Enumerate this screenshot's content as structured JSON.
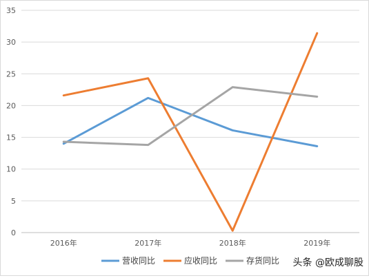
{
  "chart_data": {
    "type": "line",
    "categories": [
      "2016年",
      "2017年",
      "2018年",
      "2019年"
    ],
    "series": [
      {
        "name": "营收同比",
        "values": [
          14.0,
          21.2,
          16.1,
          13.6
        ],
        "color": "#5b9bd5"
      },
      {
        "name": "应收同比",
        "values": [
          21.6,
          24.3,
          0.3,
          31.4
        ],
        "color": "#ed7d31"
      },
      {
        "name": "存货同比",
        "values": [
          14.3,
          13.8,
          22.9,
          21.4
        ],
        "color": "#a5a5a5"
      }
    ],
    "ylim": [
      0,
      35
    ],
    "yticks": [
      0,
      5,
      10,
      15,
      20,
      25,
      30,
      35
    ],
    "grid": true,
    "legend": "bottom",
    "title": "",
    "xlabel": "",
    "ylabel": ""
  },
  "watermark": "头条 @欧成聊股"
}
